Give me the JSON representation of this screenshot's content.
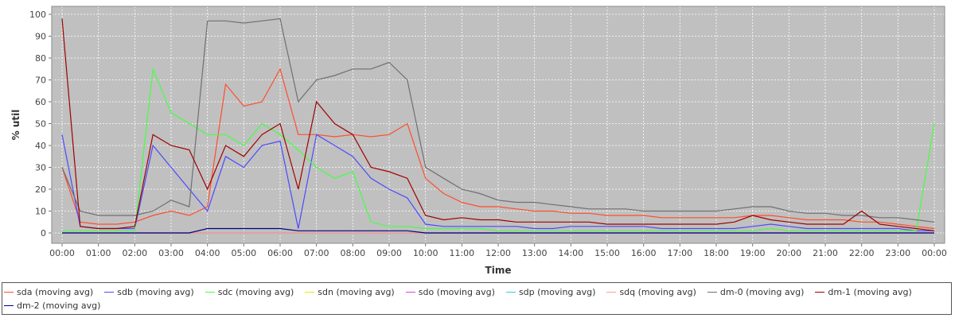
{
  "chart_data": {
    "type": "line",
    "title": "",
    "xlabel": "Time",
    "ylabel": "% util",
    "ylim": [
      0,
      100
    ],
    "xlim": [
      "00:00",
      "24:00"
    ],
    "grid": true,
    "legend_position": "bottom",
    "background_color": "#c0c0c0",
    "x_ticks": [
      "00:00",
      "01:00",
      "02:00",
      "03:00",
      "04:00",
      "05:00",
      "06:00",
      "07:00",
      "08:00",
      "09:00",
      "10:00",
      "11:00",
      "12:00",
      "13:00",
      "14:00",
      "15:00",
      "16:00",
      "17:00",
      "18:00",
      "19:00",
      "20:00",
      "21:00",
      "22:00",
      "23:00",
      "00:00"
    ],
    "y_ticks": [
      0,
      10,
      20,
      30,
      40,
      50,
      60,
      70,
      80,
      90,
      100
    ],
    "x": [
      "00:00",
      "00:30",
      "01:00",
      "01:30",
      "02:00",
      "02:30",
      "03:00",
      "03:30",
      "04:00",
      "04:30",
      "05:00",
      "05:30",
      "06:00",
      "06:30",
      "07:00",
      "07:30",
      "08:00",
      "08:30",
      "09:00",
      "09:30",
      "10:00",
      "10:30",
      "11:00",
      "11:30",
      "12:00",
      "12:30",
      "13:00",
      "13:30",
      "14:00",
      "14:30",
      "15:00",
      "15:30",
      "16:00",
      "16:30",
      "17:00",
      "17:30",
      "18:00",
      "18:30",
      "19:00",
      "19:30",
      "20:00",
      "20:30",
      "21:00",
      "21:30",
      "22:00",
      "22:30",
      "23:00",
      "23:30",
      "24:00"
    ],
    "series": [
      {
        "name": "sda (moving avg)",
        "color": "#ff4d2e",
        "values": [
          30,
          5,
          4,
          4,
          5,
          8,
          10,
          8,
          12,
          68,
          58,
          60,
          75,
          45,
          45,
          44,
          45,
          44,
          45,
          50,
          25,
          18,
          14,
          12,
          12,
          11,
          10,
          10,
          9,
          9,
          8,
          8,
          8,
          7,
          7,
          7,
          7,
          7,
          8,
          8,
          7,
          6,
          6,
          6,
          5,
          5,
          4,
          3,
          2
        ]
      },
      {
        "name": "sdb (moving avg)",
        "color": "#4a4aff",
        "values": [
          45,
          3,
          2,
          2,
          2,
          40,
          30,
          20,
          10,
          35,
          30,
          40,
          42,
          2,
          45,
          40,
          35,
          25,
          20,
          16,
          4,
          3,
          3,
          3,
          3,
          3,
          2,
          2,
          3,
          3,
          3,
          3,
          3,
          2,
          2,
          2,
          2,
          2,
          3,
          4,
          3,
          2,
          2,
          2,
          2,
          2,
          2,
          1,
          1
        ]
      },
      {
        "name": "sdc (moving avg)",
        "color": "#44ff44",
        "values": [
          1,
          1,
          1,
          1,
          1,
          75,
          55,
          50,
          45,
          45,
          40,
          50,
          45,
          38,
          30,
          25,
          28,
          5,
          3,
          3,
          2,
          2,
          2,
          2,
          1,
          1,
          1,
          1,
          1,
          1,
          1,
          1,
          1,
          1,
          1,
          1,
          1,
          1,
          1,
          2,
          1,
          1,
          1,
          1,
          1,
          1,
          1,
          1,
          50
        ]
      },
      {
        "name": "sdn (moving avg)",
        "color": "#e8e800",
        "values": [
          0,
          0,
          0,
          0,
          0,
          0,
          0,
          0,
          0,
          0,
          0,
          0,
          0,
          0,
          0,
          0,
          0,
          0,
          0,
          0,
          0,
          0,
          0,
          0,
          0,
          0,
          0,
          0,
          0,
          0,
          0,
          0,
          0,
          0,
          0,
          0,
          0,
          0,
          0,
          0,
          0,
          0,
          0,
          0,
          0,
          0,
          0,
          0,
          0
        ]
      },
      {
        "name": "sdo (moving avg)",
        "color": "#e040e0",
        "values": [
          0,
          0,
          0,
          0,
          0,
          0,
          0,
          0,
          0,
          0,
          0,
          0,
          0,
          0,
          0,
          0,
          0,
          0,
          0,
          0,
          0,
          0,
          0,
          0,
          0,
          0,
          0,
          0,
          0,
          0,
          0,
          0,
          0,
          0,
          0,
          0,
          0,
          0,
          0,
          0,
          0,
          0,
          0,
          0,
          0,
          0,
          0,
          0,
          0
        ]
      },
      {
        "name": "sdp (moving avg)",
        "color": "#30d0e0",
        "values": [
          0,
          0,
          0,
          0,
          0,
          0,
          0,
          0,
          0,
          0,
          0,
          0,
          0,
          0,
          0,
          0,
          0,
          0,
          0,
          0,
          0,
          0,
          0,
          0,
          0,
          0,
          0,
          0,
          0,
          0,
          0,
          0,
          0,
          0,
          0,
          0,
          0,
          0,
          0,
          0,
          0,
          0,
          0,
          0,
          0,
          0,
          0,
          0,
          0
        ]
      },
      {
        "name": "sdq (moving avg)",
        "color": "#ff9a9a",
        "values": [
          0,
          0,
          0,
          0,
          0,
          0,
          0,
          0,
          0,
          0,
          0,
          0,
          0,
          0,
          0,
          0,
          0,
          0,
          0,
          0,
          0,
          0,
          0,
          0,
          0,
          0,
          0,
          0,
          0,
          0,
          0,
          0,
          0,
          0,
          0,
          0,
          0,
          0,
          0,
          0,
          0,
          0,
          0,
          0,
          0,
          0,
          0,
          0,
          0
        ]
      },
      {
        "name": "dm-0 (moving avg)",
        "color": "#707070",
        "values": [
          30,
          10,
          8,
          8,
          8,
          10,
          15,
          12,
          97,
          97,
          96,
          97,
          98,
          60,
          70,
          72,
          75,
          75,
          78,
          70,
          30,
          25,
          20,
          18,
          15,
          14,
          14,
          13,
          12,
          11,
          11,
          11,
          10,
          10,
          10,
          10,
          10,
          11,
          12,
          12,
          10,
          9,
          9,
          8,
          8,
          7,
          7,
          6,
          5
        ]
      },
      {
        "name": "dm-1 (moving avg)",
        "color": "#a00000",
        "values": [
          98,
          3,
          2,
          2,
          3,
          45,
          40,
          38,
          20,
          40,
          35,
          45,
          50,
          20,
          60,
          50,
          45,
          30,
          28,
          25,
          8,
          6,
          7,
          6,
          6,
          5,
          5,
          5,
          5,
          5,
          4,
          4,
          4,
          4,
          4,
          4,
          4,
          5,
          8,
          6,
          5,
          4,
          4,
          4,
          10,
          4,
          3,
          2,
          1
        ]
      },
      {
        "name": "dm-2 (moving avg)",
        "color": "#000080",
        "values": [
          0,
          0,
          0,
          0,
          0,
          0,
          0,
          0,
          2,
          2,
          2,
          2,
          2,
          1,
          1,
          1,
          1,
          1,
          1,
          1,
          0,
          0,
          0,
          0,
          0,
          0,
          0,
          0,
          0,
          0,
          0,
          0,
          0,
          0,
          0,
          0,
          0,
          0,
          0,
          0,
          0,
          0,
          0,
          0,
          0,
          0,
          0,
          0,
          0
        ]
      }
    ]
  }
}
